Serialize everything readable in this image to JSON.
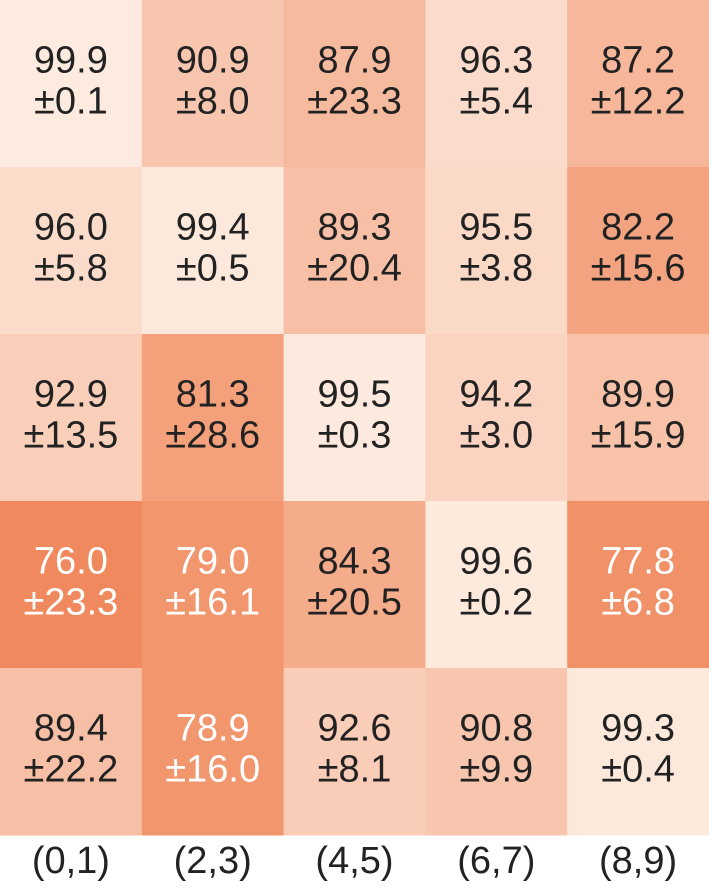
{
  "chart_data": {
    "type": "heatmap",
    "categories": [
      "(0,1)",
      "(2,3)",
      "(4,5)",
      "(6,7)",
      "(8,9)"
    ],
    "values": [
      [
        99.9,
        90.9,
        87.9,
        96.3,
        87.2
      ],
      [
        96.0,
        99.4,
        89.3,
        95.5,
        82.2
      ],
      [
        92.9,
        81.3,
        99.5,
        94.2,
        89.9
      ],
      [
        76.0,
        79.0,
        84.3,
        99.6,
        77.8
      ],
      [
        89.4,
        78.9,
        92.6,
        90.8,
        99.3
      ]
    ],
    "value_labels": [
      [
        "99.9",
        "90.9",
        "87.9",
        "96.3",
        "87.2"
      ],
      [
        "96.0",
        "99.4",
        "89.3",
        "95.5",
        "82.2"
      ],
      [
        "92.9",
        "81.3",
        "99.5",
        "94.2",
        "89.9"
      ],
      [
        "76.0",
        "79.0",
        "84.3",
        "99.6",
        "77.8"
      ],
      [
        "89.4",
        "78.9",
        "92.6",
        "90.8",
        "99.3"
      ]
    ],
    "errors": [
      [
        0.1,
        8.0,
        23.3,
        5.4,
        12.2
      ],
      [
        5.8,
        0.5,
        20.4,
        3.8,
        15.6
      ],
      [
        13.5,
        28.6,
        0.3,
        3.0,
        15.9
      ],
      [
        23.3,
        16.1,
        20.5,
        0.2,
        6.8
      ],
      [
        22.2,
        16.0,
        8.1,
        9.9,
        0.4
      ]
    ],
    "error_labels": [
      [
        "±0.1",
        "±8.0",
        "±23.3",
        "±5.4",
        "±12.2"
      ],
      [
        "±5.8",
        "±0.5",
        "±20.4",
        "±3.8",
        "±15.6"
      ],
      [
        "±13.5",
        "±28.6",
        "±0.3",
        "±3.0",
        "±15.9"
      ],
      [
        "±23.3",
        "±16.1",
        "±20.5",
        "±0.2",
        "±6.8"
      ],
      [
        "±22.2",
        "±16.0",
        "±8.1",
        "±9.9",
        "±0.4"
      ]
    ],
    "colors": [
      "#f08a5e",
      "#fdebdf"
    ]
  }
}
